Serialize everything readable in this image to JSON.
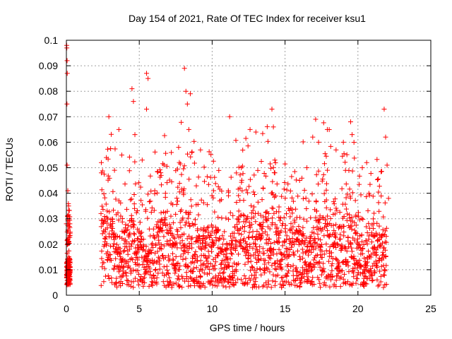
{
  "chart_data": {
    "type": "scatter",
    "title": "Day 154 of 2021, Rate Of TEC Index for receiver ksu1",
    "xlabel": "GPS time / hours",
    "ylabel": "ROTI / TECUs",
    "xlim": [
      0,
      25
    ],
    "ylim": [
      0,
      0.1
    ],
    "x_ticks": [
      "0",
      "5",
      "10",
      "15",
      "20",
      "25"
    ],
    "y_ticks": [
      "0",
      "0.01",
      "0.02",
      "0.03",
      "0.04",
      "0.05",
      "0.06",
      "0.07",
      "0.08",
      "0.09",
      "0.1"
    ],
    "grid": true,
    "marker": "+",
    "color": "#ff0000",
    "series": [
      {
        "points": [
          [
            0.02,
            0.098
          ],
          [
            0.03,
            0.097
          ],
          [
            0.05,
            0.092
          ],
          [
            0.06,
            0.087
          ],
          [
            0.04,
            0.075
          ],
          [
            0.05,
            0.051
          ],
          [
            0.1,
            0.041
          ],
          [
            0.15,
            0.035
          ],
          [
            0.2,
            0.03
          ],
          [
            0.2,
            0.027
          ],
          [
            0.1,
            0.022
          ],
          [
            0.15,
            0.012
          ],
          [
            0.2,
            0.008
          ],
          [
            0.25,
            0.006
          ],
          [
            0.1,
            0.005
          ],
          [
            2.4,
            0.052
          ],
          [
            2.4,
            0.048
          ],
          [
            2.5,
            0.028
          ],
          [
            3.3,
            0.049
          ],
          [
            3.6,
            0.065
          ],
          [
            3.8,
            0.055
          ],
          [
            4.5,
            0.081
          ],
          [
            4.6,
            0.076
          ],
          [
            4.7,
            0.063
          ],
          [
            5.2,
            0.053
          ],
          [
            5.5,
            0.087
          ],
          [
            5.6,
            0.085
          ],
          [
            5.5,
            0.073
          ],
          [
            6.5,
            0.047
          ],
          [
            7.2,
            0.056
          ],
          [
            7.7,
            0.058
          ],
          [
            8.1,
            0.089
          ],
          [
            8.2,
            0.08
          ],
          [
            8.3,
            0.075
          ],
          [
            8.5,
            0.079
          ],
          [
            8.4,
            0.065
          ],
          [
            8.6,
            0.056
          ],
          [
            9.2,
            0.057
          ],
          [
            10.1,
            0.041
          ],
          [
            11.2,
            0.07
          ],
          [
            12.0,
            0.05
          ],
          [
            12.6,
            0.065
          ],
          [
            13.0,
            0.064
          ],
          [
            14.1,
            0.073
          ],
          [
            14.2,
            0.066
          ],
          [
            14.3,
            0.048
          ],
          [
            16.0,
            0.045
          ],
          [
            16.5,
            0.05
          ],
          [
            16.9,
            0.062
          ],
          [
            17.1,
            0.069
          ],
          [
            17.3,
            0.06
          ],
          [
            17.9,
            0.065
          ],
          [
            18.5,
            0.057
          ],
          [
            19.0,
            0.06
          ],
          [
            19.5,
            0.068
          ],
          [
            19.6,
            0.063
          ],
          [
            20.3,
            0.05
          ],
          [
            20.6,
            0.052
          ],
          [
            21.8,
            0.073
          ],
          [
            21.9,
            0.062
          ],
          [
            22.0,
            0.051
          ],
          [
            22.1,
            0.038
          ]
        ]
      }
    ]
  }
}
